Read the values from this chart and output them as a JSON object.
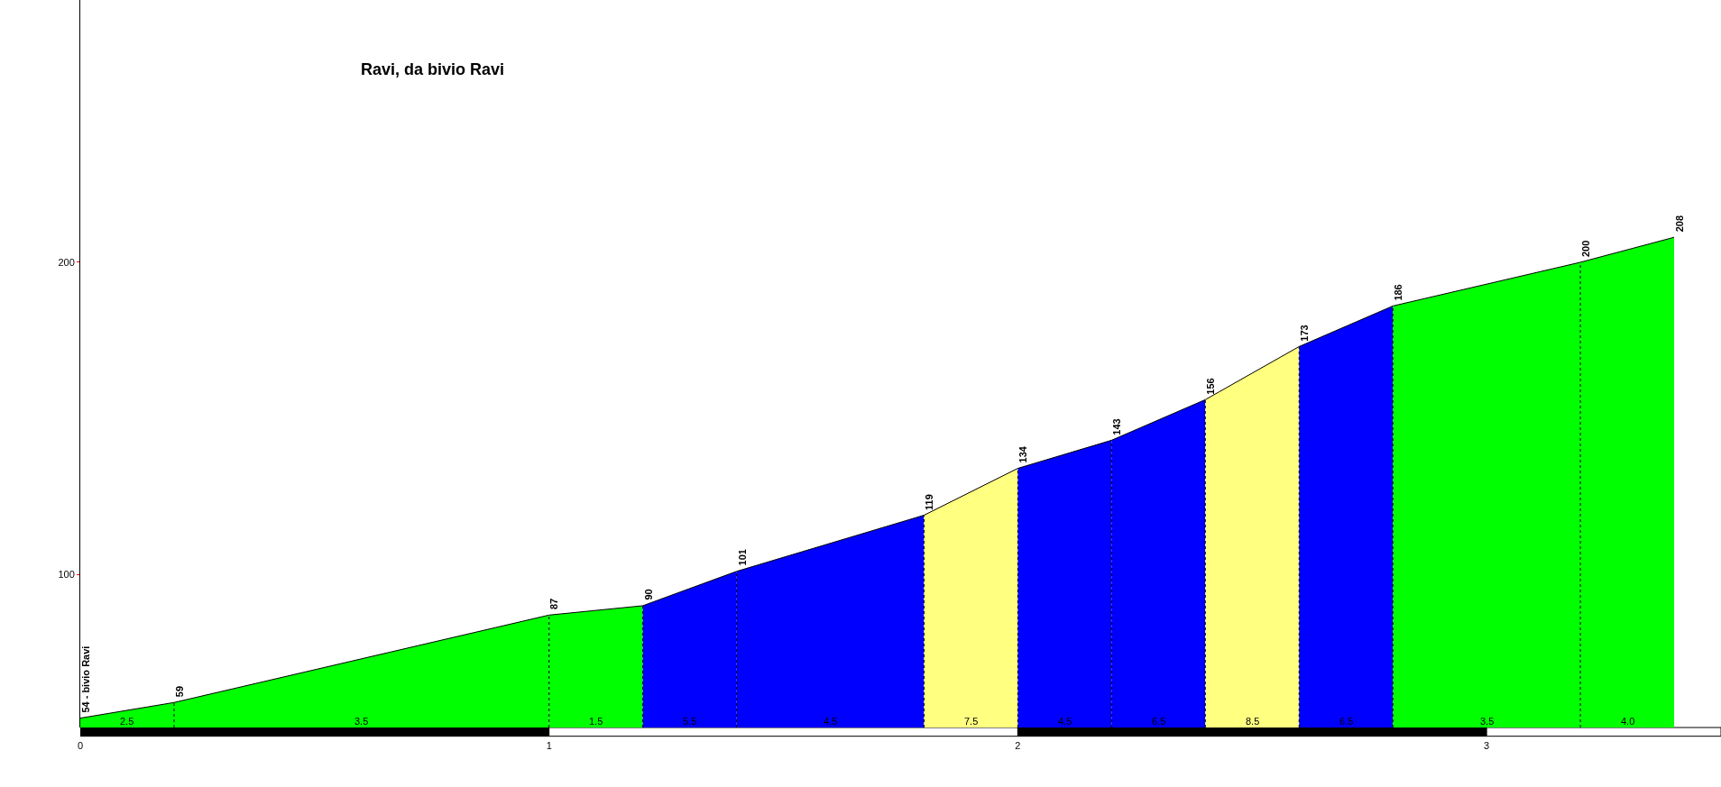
{
  "chart_data": {
    "type": "area",
    "title": "Ravi, da bivio Ravi",
    "series": [
      {
        "color": "#00ff00",
        "x": [
          0,
          0.2
        ],
        "values": [
          54,
          59
        ],
        "value_labels": [
          "54 - bivio Ravi",
          null
        ]
      },
      {
        "color": "#00ff00",
        "x": [
          0.2,
          1.0
        ],
        "values": [
          59,
          87
        ],
        "value_labels": [
          "59",
          null
        ]
      },
      {
        "color": "#00ff00",
        "x": [
          1.0,
          1.2
        ],
        "values": [
          87,
          90
        ],
        "value_labels": [
          "87",
          null
        ]
      },
      {
        "color": "#0000ff",
        "x": [
          1.2,
          1.4
        ],
        "values": [
          90,
          101
        ],
        "value_labels": [
          "90",
          null
        ]
      },
      {
        "color": "#0000ff",
        "x": [
          1.4,
          1.8
        ],
        "values": [
          101,
          119
        ],
        "value_labels": [
          "101",
          null
        ]
      },
      {
        "color": "#ffff80",
        "x": [
          1.8,
          2.0
        ],
        "values": [
          119,
          134
        ],
        "value_labels": [
          "119",
          null
        ]
      },
      {
        "color": "#0000ff",
        "x": [
          2.0,
          2.2
        ],
        "values": [
          134,
          143
        ],
        "value_labels": [
          "134",
          null
        ]
      },
      {
        "color": "#0000ff",
        "x": [
          2.2,
          2.4
        ],
        "values": [
          143,
          156
        ],
        "value_labels": [
          "143",
          null
        ]
      },
      {
        "color": "#ffff80",
        "x": [
          2.4,
          2.6
        ],
        "values": [
          156,
          173
        ],
        "value_labels": [
          "156",
          null
        ]
      },
      {
        "color": "#0000ff",
        "x": [
          2.6,
          2.8
        ],
        "values": [
          173,
          186
        ],
        "value_labels": [
          "173",
          null
        ]
      },
      {
        "color": "#00ff00",
        "x": [
          2.8,
          3.2
        ],
        "values": [
          186,
          200
        ],
        "value_labels": [
          "186",
          null
        ]
      },
      {
        "color": "#00ff00",
        "x": [
          3.2,
          3.4
        ],
        "values": [
          200,
          208
        ],
        "value_labels": [
          "200",
          "208"
        ]
      }
    ],
    "annotations": [
      "2.5",
      "3.5",
      "1.5",
      "5.5",
      "4.5",
      "7.5",
      "4.5",
      "6.5",
      "8.5",
      "6.5",
      "3.5",
      "4.0"
    ],
    "xlim": [
      0,
      3.5
    ],
    "ylim": [
      51,
      284
    ],
    "xticks": [
      0,
      1,
      2,
      3
    ],
    "yticks": [
      100,
      200
    ]
  }
}
